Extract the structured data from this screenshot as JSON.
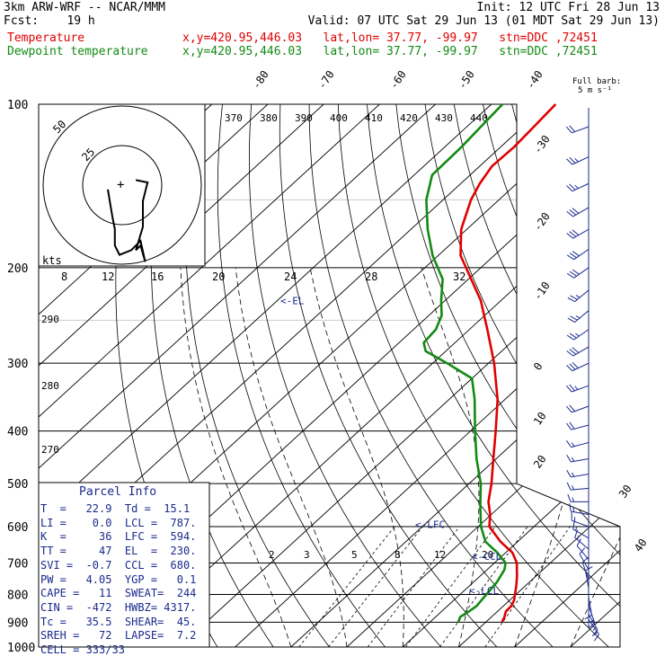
{
  "header": {
    "model": "3km ARW-WRF -- NCAR/MMM",
    "init": "Init: 12 UTC Fri 28 Jun 13",
    "fcst": "Fcst:    19 h",
    "valid": "Valid: 07 UTC Sat 29 Jun 13 (01 MDT Sat 29 Jun 13)",
    "temp_label": "Temperature",
    "temp_loc": "x,y=420.95,446.03   lat,lon= 37.77, -99.97   stn=DDC ,72451",
    "dew_label": "Dewpoint temperature",
    "dew_loc": "x,y=420.95,446.03   lat,lon= 37.77, -99.97   stn=DDC ,72451"
  },
  "colors": {
    "temperature": "#e00000",
    "dewpoint": "#138a13",
    "wind": "#1a2a8c",
    "text_info": "#1a2a8c"
  },
  "chart_data": {
    "type": "line",
    "diagram": "skew-T log-P",
    "y_axis": {
      "label": "pressure (hPa)",
      "scale": "log",
      "range": [
        1000,
        100
      ],
      "ticks": [
        100,
        200,
        300,
        400,
        500,
        600,
        700,
        800,
        900,
        1000
      ]
    },
    "isotherm_labels": [
      "-80",
      "-70",
      "-60",
      "-50",
      "-40",
      "-30",
      "-20",
      "-10",
      "0",
      "10",
      "20",
      "30",
      "40"
    ],
    "mixing_ratio_labels": [
      "2",
      "3",
      "5",
      "8",
      "12",
      "20"
    ],
    "theta_labels_top": [
      "370",
      "380",
      "390",
      "400",
      "410",
      "420",
      "430",
      "440"
    ],
    "theta_labels_left": [
      "290",
      "280",
      "270"
    ],
    "series": [
      {
        "name": "Temperature",
        "color": "#e00000",
        "points": [
          [
            900,
            22.9
          ],
          [
            880,
            22.3
          ],
          [
            860,
            21.5
          ],
          [
            840,
            21.4
          ],
          [
            820,
            20.8
          ],
          [
            800,
            19.8
          ],
          [
            770,
            18.3
          ],
          [
            740,
            16.6
          ],
          [
            700,
            14.0
          ],
          [
            670,
            11.2
          ],
          [
            640,
            7.0
          ],
          [
            600,
            2.0
          ],
          [
            570,
            -0.2
          ],
          [
            540,
            -3.0
          ],
          [
            500,
            -6.0
          ],
          [
            450,
            -10.5
          ],
          [
            400,
            -15.5
          ],
          [
            350,
            -21.3
          ],
          [
            300,
            -29.0
          ],
          [
            260,
            -36.8
          ],
          [
            230,
            -43.6
          ],
          [
            210,
            -49.5
          ],
          [
            190,
            -56.0
          ],
          [
            170,
            -61.0
          ],
          [
            150,
            -65.0
          ],
          [
            140,
            -66.6
          ],
          [
            130,
            -67.8
          ],
          [
            120,
            -67.6
          ],
          [
            110,
            -68.0
          ],
          [
            100,
            -68.5
          ]
        ]
      },
      {
        "name": "Dewpoint temperature",
        "color": "#138a13",
        "points": [
          [
            900,
            15.1
          ],
          [
            880,
            14.4
          ],
          [
            860,
            14.9
          ],
          [
            840,
            15.2
          ],
          [
            800,
            14.7
          ],
          [
            760,
            14.2
          ],
          [
            720,
            13.1
          ],
          [
            700,
            12.0
          ],
          [
            670,
            8.5
          ],
          [
            640,
            4.3
          ],
          [
            600,
            0.5
          ],
          [
            550,
            -3.6
          ],
          [
            500,
            -7.9
          ],
          [
            450,
            -13.5
          ],
          [
            400,
            -19.2
          ],
          [
            350,
            -25.4
          ],
          [
            320,
            -30.0
          ],
          [
            300,
            -37.4
          ],
          [
            285,
            -43.6
          ],
          [
            275,
            -45.6
          ],
          [
            260,
            -46.0
          ],
          [
            245,
            -47.7
          ],
          [
            230,
            -50.7
          ],
          [
            210,
            -54.6
          ],
          [
            190,
            -61.0
          ],
          [
            170,
            -67.0
          ],
          [
            150,
            -73.0
          ],
          [
            135,
            -76.8
          ],
          [
            120,
            -77.0
          ],
          [
            110,
            -77.5
          ],
          [
            100,
            -78.0
          ]
        ]
      }
    ],
    "levels": [
      {
        "label": "<-EL",
        "pressure": 230
      },
      {
        "label": "<-LFC",
        "pressure": 594
      },
      {
        "label": "<-CCL",
        "pressure": 680
      },
      {
        "label": "<-LCL",
        "pressure": 787
      }
    ],
    "wind_barbs_label": "Full barb: 5 m s⁻¹",
    "wind_barbs": [
      {
        "pressure": 110,
        "dir": 250,
        "spd": 20
      },
      {
        "pressure": 125,
        "dir": 245,
        "spd": 25
      },
      {
        "pressure": 140,
        "dir": 245,
        "spd": 25
      },
      {
        "pressure": 155,
        "dir": 240,
        "spd": 30
      },
      {
        "pressure": 170,
        "dir": 240,
        "spd": 30
      },
      {
        "pressure": 185,
        "dir": 235,
        "spd": 30
      },
      {
        "pressure": 200,
        "dir": 235,
        "spd": 30
      },
      {
        "pressure": 220,
        "dir": 230,
        "spd": 25
      },
      {
        "pressure": 240,
        "dir": 230,
        "spd": 25
      },
      {
        "pressure": 260,
        "dir": 235,
        "spd": 25
      },
      {
        "pressure": 280,
        "dir": 240,
        "spd": 30
      },
      {
        "pressure": 300,
        "dir": 245,
        "spd": 30
      },
      {
        "pressure": 330,
        "dir": 250,
        "spd": 25
      },
      {
        "pressure": 360,
        "dir": 250,
        "spd": 20
      },
      {
        "pressure": 390,
        "dir": 255,
        "spd": 20
      },
      {
        "pressure": 420,
        "dir": 255,
        "spd": 15
      },
      {
        "pressure": 450,
        "dir": 260,
        "spd": 15
      },
      {
        "pressure": 480,
        "dir": 260,
        "spd": 15
      },
      {
        "pressure": 510,
        "dir": 265,
        "spd": 15
      },
      {
        "pressure": 540,
        "dir": 270,
        "spd": 15
      },
      {
        "pressure": 570,
        "dir": 280,
        "spd": 15
      },
      {
        "pressure": 600,
        "dir": 290,
        "spd": 15
      },
      {
        "pressure": 630,
        "dir": 300,
        "spd": 15
      },
      {
        "pressure": 660,
        "dir": 310,
        "spd": 15
      },
      {
        "pressure": 690,
        "dir": 320,
        "spd": 10
      },
      {
        "pressure": 720,
        "dir": 330,
        "spd": 10
      },
      {
        "pressure": 750,
        "dir": 340,
        "spd": 10
      },
      {
        "pressure": 780,
        "dir": 350,
        "spd": 10
      },
      {
        "pressure": 810,
        "dir": 170,
        "spd": 10
      },
      {
        "pressure": 840,
        "dir": 160,
        "spd": 15
      },
      {
        "pressure": 870,
        "dir": 150,
        "spd": 15
      },
      {
        "pressure": 890,
        "dir": 145,
        "spd": 15
      }
    ],
    "hodograph": {
      "axis_label": "kts",
      "ring_labels": [
        "25",
        "50"
      ],
      "speed_ticks": [
        "8",
        "12",
        "16",
        "20",
        "24",
        "28",
        "32"
      ],
      "points": [
        [
          -10,
          2
        ],
        [
          -8,
          -10
        ],
        [
          -7,
          -15
        ],
        [
          -7,
          -22
        ],
        [
          -5,
          -26
        ],
        [
          0,
          -24
        ],
        [
          4,
          -20
        ],
        [
          6,
          -29
        ],
        [
          4,
          -22
        ],
        [
          2,
          -24
        ],
        [
          5,
          -14
        ],
        [
          5,
          -3
        ],
        [
          7,
          5
        ],
        [
          2,
          6
        ]
      ]
    }
  },
  "parcel_info": {
    "title": "Parcel Info",
    "rows": [
      "T  =   22.9  Td =  15.1",
      "LI =    0.0  LCL =  787.",
      "K  =     36  LFC =  594.",
      "TT =     47  EL  =  230.",
      "SVI =  -0.7  CCL =  680.",
      "PW =   4.05  YGP =   0.1",
      "CAPE =   11  SWEAT=  244",
      "CIN =  -472  HWBZ= 4317.",
      "Tc =   35.5  SHEAR=  45.",
      "SREH =   72  LAPSE=  7.2",
      "CELL = 333/33"
    ]
  }
}
